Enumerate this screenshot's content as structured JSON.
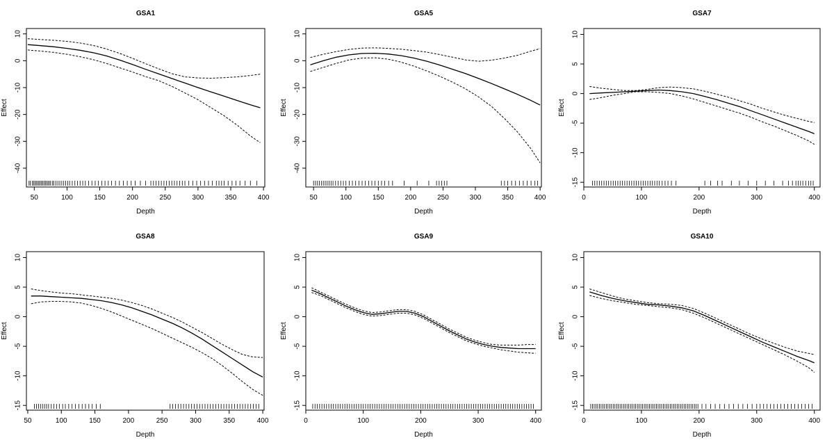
{
  "chart_data": [
    {
      "type": "line",
      "title": "GSA1",
      "xlabel": "Depth",
      "ylabel": "Effect",
      "xlim": [
        38,
        402
      ],
      "ylim": [
        -47,
        12
      ],
      "xticks": [
        50,
        100,
        150,
        200,
        250,
        300,
        350,
        400
      ],
      "yticks": [
        10,
        0,
        -10,
        -20,
        -30,
        -40
      ],
      "x": [
        40,
        60,
        80,
        100,
        120,
        140,
        160,
        180,
        200,
        220,
        240,
        260,
        280,
        300,
        320,
        340,
        360,
        380,
        395
      ],
      "series": [
        {
          "role": "fit",
          "dashed": false,
          "values": [
            6.0,
            5.6,
            5.2,
            4.6,
            3.9,
            3.0,
            1.8,
            0.3,
            -1.4,
            -3.2,
            -4.9,
            -6.6,
            -8.3,
            -10.0,
            -11.6,
            -13.2,
            -14.8,
            -16.4,
            -17.5
          ]
        },
        {
          "role": "upper",
          "dashed": true,
          "values": [
            8.2,
            7.9,
            7.6,
            7.2,
            6.6,
            5.7,
            4.4,
            2.8,
            0.9,
            -1.1,
            -3.0,
            -4.8,
            -6.0,
            -6.4,
            -6.5,
            -6.3,
            -6.0,
            -5.5,
            -5.0
          ]
        },
        {
          "role": "lower",
          "dashed": true,
          "values": [
            4.0,
            3.6,
            3.1,
            2.4,
            1.5,
            0.4,
            -1.0,
            -2.6,
            -4.2,
            -5.9,
            -7.4,
            -9.5,
            -12.0,
            -14.5,
            -17.5,
            -20.5,
            -24.0,
            -28.0,
            -30.5
          ]
        }
      ],
      "rug": [
        42,
        44,
        47,
        49,
        51,
        53,
        55,
        57,
        59,
        61,
        63,
        65,
        67,
        69,
        71,
        73,
        75,
        78,
        80,
        83,
        86,
        89,
        92,
        95,
        98,
        101,
        104,
        108,
        112,
        116,
        120,
        124,
        128,
        133,
        138,
        143,
        148,
        153,
        158,
        163,
        168,
        174,
        180,
        186,
        192,
        198,
        204,
        212,
        220,
        228,
        232,
        236,
        240,
        244,
        248,
        252,
        256,
        260,
        264,
        268,
        272,
        276,
        280,
        286,
        292,
        298,
        304,
        310,
        316,
        322,
        328,
        332,
        336,
        340,
        346,
        352,
        358,
        364,
        372,
        380,
        390
      ]
    },
    {
      "type": "line",
      "title": "GSA5",
      "xlabel": "Depth",
      "ylabel": "Effect",
      "xlim": [
        38,
        402
      ],
      "ylim": [
        -47,
        12
      ],
      "xticks": [
        50,
        100,
        150,
        200,
        250,
        300,
        350,
        400
      ],
      "yticks": [
        10,
        0,
        -10,
        -20,
        -30,
        -40
      ],
      "x": [
        45,
        65,
        85,
        105,
        125,
        145,
        165,
        185,
        205,
        225,
        245,
        265,
        285,
        305,
        325,
        345,
        365,
        385,
        400
      ],
      "series": [
        {
          "role": "fit",
          "dashed": false,
          "values": [
            -1.5,
            0.0,
            1.3,
            2.2,
            2.7,
            2.8,
            2.5,
            1.9,
            1.0,
            -0.2,
            -1.6,
            -3.2,
            -4.8,
            -6.6,
            -8.5,
            -10.5,
            -12.5,
            -14.7,
            -16.5
          ]
        },
        {
          "role": "upper",
          "dashed": true,
          "values": [
            1.2,
            2.4,
            3.4,
            4.2,
            4.7,
            4.8,
            4.6,
            4.3,
            3.8,
            3.2,
            2.3,
            1.3,
            0.3,
            -0.2,
            0.2,
            1.0,
            2.0,
            3.5,
            4.5
          ]
        },
        {
          "role": "lower",
          "dashed": true,
          "values": [
            -4.0,
            -2.5,
            -1.0,
            0.3,
            1.0,
            1.1,
            0.6,
            -0.5,
            -2.0,
            -3.8,
            -5.8,
            -8.0,
            -10.5,
            -13.5,
            -17.0,
            -21.5,
            -26.5,
            -32.5,
            -38.0
          ]
        }
      ],
      "rug": [
        50,
        53,
        56,
        59,
        62,
        65,
        68,
        71,
        74,
        77,
        80,
        84,
        88,
        92,
        96,
        100,
        105,
        110,
        115,
        120,
        125,
        130,
        135,
        140,
        145,
        150,
        155,
        160,
        166,
        172,
        190,
        210,
        228,
        240,
        244,
        248,
        252,
        256,
        340,
        345,
        350,
        356,
        362,
        368,
        374,
        380,
        386,
        392,
        396
      ]
    },
    {
      "type": "line",
      "title": "GSA7",
      "xlabel": "Depth",
      "ylabel": "Effect",
      "xlim": [
        0,
        410
      ],
      "ylim": [
        -15.8,
        11
      ],
      "xticks": [
        0,
        100,
        200,
        300,
        400
      ],
      "yticks": [
        10,
        5,
        0,
        -5,
        -10,
        -15
      ],
      "x": [
        10,
        30,
        50,
        70,
        90,
        110,
        130,
        150,
        170,
        190,
        210,
        230,
        250,
        270,
        290,
        310,
        330,
        350,
        370,
        390,
        400
      ],
      "series": [
        {
          "role": "fit",
          "dashed": false,
          "values": [
            0.0,
            0.1,
            0.2,
            0.3,
            0.4,
            0.5,
            0.6,
            0.5,
            0.3,
            0.0,
            -0.5,
            -1.0,
            -1.6,
            -2.2,
            -2.9,
            -3.6,
            -4.3,
            -5.0,
            -5.7,
            -6.4,
            -6.8
          ]
        },
        {
          "role": "upper",
          "dashed": true,
          "values": [
            1.2,
            0.9,
            0.7,
            0.5,
            0.5,
            0.7,
            1.0,
            1.1,
            1.0,
            0.8,
            0.4,
            -0.1,
            -0.6,
            -1.2,
            -1.8,
            -2.5,
            -3.1,
            -3.7,
            -4.2,
            -4.7,
            -4.9
          ]
        },
        {
          "role": "lower",
          "dashed": true,
          "values": [
            -1.0,
            -0.7,
            -0.3,
            0.0,
            0.3,
            0.3,
            0.2,
            0.0,
            -0.4,
            -0.9,
            -1.5,
            -2.1,
            -2.7,
            -3.3,
            -4.0,
            -4.8,
            -5.5,
            -6.3,
            -7.1,
            -8.0,
            -8.6
          ]
        }
      ],
      "rug": [
        15,
        19,
        23,
        27,
        31,
        35,
        39,
        43,
        47,
        51,
        55,
        59,
        63,
        67,
        71,
        75,
        79,
        83,
        87,
        91,
        95,
        99,
        103,
        107,
        111,
        115,
        119,
        123,
        127,
        131,
        136,
        141,
        146,
        152,
        160,
        210,
        220,
        232,
        240,
        256,
        270,
        285,
        300,
        315,
        330,
        345,
        355,
        362,
        368,
        372,
        376,
        380,
        385,
        390,
        394,
        398
      ]
    },
    {
      "type": "line",
      "title": "GSA8",
      "xlabel": "Depth",
      "ylabel": "Effect",
      "xlim": [
        48,
        402
      ],
      "ylim": [
        -15.8,
        11
      ],
      "xticks": [
        50,
        100,
        150,
        200,
        250,
        300,
        350,
        400
      ],
      "yticks": [
        10,
        5,
        0,
        -5,
        -10,
        -15
      ],
      "x": [
        55,
        70,
        85,
        100,
        115,
        130,
        145,
        160,
        175,
        190,
        205,
        220,
        235,
        250,
        265,
        280,
        295,
        310,
        325,
        340,
        355,
        370,
        385,
        400
      ],
      "series": [
        {
          "role": "fit",
          "dashed": false,
          "values": [
            3.5,
            3.5,
            3.4,
            3.3,
            3.2,
            3.1,
            2.9,
            2.7,
            2.4,
            2.0,
            1.5,
            0.9,
            0.3,
            -0.4,
            -1.1,
            -1.9,
            -2.8,
            -3.8,
            -4.9,
            -6.0,
            -7.1,
            -8.2,
            -9.3,
            -10.2
          ]
        },
        {
          "role": "upper",
          "dashed": true,
          "values": [
            4.7,
            4.4,
            4.2,
            4.0,
            3.9,
            3.7,
            3.5,
            3.3,
            3.1,
            2.8,
            2.4,
            1.9,
            1.3,
            0.6,
            -0.1,
            -0.9,
            -1.8,
            -2.7,
            -3.7,
            -4.7,
            -5.6,
            -6.4,
            -6.8,
            -6.9
          ]
        },
        {
          "role": "lower",
          "dashed": true,
          "values": [
            2.2,
            2.5,
            2.6,
            2.6,
            2.5,
            2.3,
            1.9,
            1.4,
            0.8,
            0.1,
            -0.6,
            -1.3,
            -2.0,
            -2.8,
            -3.6,
            -4.4,
            -5.2,
            -6.1,
            -7.1,
            -8.3,
            -9.6,
            -11.0,
            -12.3,
            -13.3
          ]
        }
      ],
      "rug": [
        60,
        63,
        66,
        69,
        72,
        75,
        78,
        81,
        85,
        89,
        93,
        97,
        102,
        106,
        111,
        116,
        121,
        126,
        131,
        136,
        141,
        146,
        152,
        158,
        262,
        266,
        270,
        274,
        278,
        282,
        286,
        290,
        294,
        298,
        302,
        306,
        310,
        314,
        318,
        322,
        326,
        330,
        334,
        338,
        342,
        346,
        350,
        354,
        358,
        362,
        366,
        370,
        374,
        378,
        382,
        386,
        390,
        394
      ]
    },
    {
      "type": "line",
      "title": "GSA9",
      "xlabel": "Depth",
      "ylabel": "Effect",
      "xlim": [
        0,
        410
      ],
      "ylim": [
        -15.8,
        11
      ],
      "xticks": [
        0,
        100,
        200,
        300,
        400
      ],
      "yticks": [
        10,
        5,
        0,
        -5,
        -10,
        -15
      ],
      "x": [
        10,
        25,
        40,
        55,
        70,
        85,
        100,
        115,
        130,
        145,
        160,
        175,
        190,
        205,
        220,
        235,
        250,
        265,
        280,
        295,
        310,
        325,
        340,
        355,
        370,
        385,
        400
      ],
      "series": [
        {
          "role": "fit",
          "dashed": false,
          "values": [
            4.5,
            3.9,
            3.2,
            2.5,
            1.8,
            1.2,
            0.7,
            0.4,
            0.5,
            0.7,
            0.9,
            0.9,
            0.6,
            0.0,
            -0.8,
            -1.6,
            -2.4,
            -3.1,
            -3.8,
            -4.3,
            -4.7,
            -5.0,
            -5.2,
            -5.3,
            -5.4,
            -5.4,
            -5.4
          ]
        },
        {
          "role": "upper",
          "dashed": true,
          "values": [
            4.9,
            4.2,
            3.5,
            2.8,
            2.1,
            1.5,
            1.0,
            0.7,
            0.8,
            1.0,
            1.2,
            1.2,
            0.9,
            0.3,
            -0.5,
            -1.3,
            -2.1,
            -2.8,
            -3.5,
            -4.0,
            -4.4,
            -4.7,
            -4.8,
            -4.8,
            -4.8,
            -4.7,
            -4.7
          ]
        },
        {
          "role": "lower",
          "dashed": true,
          "values": [
            4.1,
            3.6,
            2.9,
            2.2,
            1.5,
            0.9,
            0.4,
            0.1,
            0.2,
            0.4,
            0.6,
            0.6,
            0.3,
            -0.3,
            -1.1,
            -1.9,
            -2.7,
            -3.4,
            -4.1,
            -4.6,
            -5.0,
            -5.3,
            -5.6,
            -5.8,
            -6.0,
            -6.1,
            -6.2
          ]
        }
      ],
      "rug": [
        12,
        16,
        20,
        24,
        28,
        32,
        36,
        40,
        44,
        48,
        52,
        56,
        60,
        64,
        68,
        72,
        76,
        80,
        84,
        88,
        92,
        96,
        100,
        104,
        108,
        112,
        116,
        120,
        124,
        128,
        132,
        136,
        140,
        144,
        148,
        152,
        156,
        160,
        164,
        168,
        172,
        176,
        180,
        184,
        188,
        192,
        196,
        200,
        204,
        208,
        212,
        216,
        220,
        224,
        228,
        232,
        236,
        240,
        244,
        248,
        252,
        256,
        260,
        264,
        268,
        272,
        276,
        280,
        284,
        288,
        292,
        296,
        300,
        304,
        308,
        312,
        316,
        320,
        324,
        328,
        332,
        336,
        340,
        344,
        348,
        352,
        356,
        360,
        364,
        368,
        372,
        376,
        380,
        384,
        388,
        392,
        396
      ]
    },
    {
      "type": "line",
      "title": "GSA10",
      "xlabel": "Depth",
      "ylabel": "Effect",
      "xlim": [
        0,
        410
      ],
      "ylim": [
        -15.8,
        11
      ],
      "xticks": [
        0,
        100,
        200,
        300,
        400
      ],
      "yticks": [
        10,
        5,
        0,
        -5,
        -10,
        -15
      ],
      "x": [
        10,
        30,
        50,
        70,
        90,
        110,
        130,
        150,
        170,
        190,
        210,
        230,
        250,
        270,
        290,
        310,
        330,
        350,
        370,
        390,
        400
      ],
      "series": [
        {
          "role": "fit",
          "dashed": false,
          "values": [
            4.2,
            3.6,
            3.1,
            2.7,
            2.4,
            2.1,
            2.0,
            1.8,
            1.5,
            1.0,
            0.2,
            -0.7,
            -1.6,
            -2.5,
            -3.4,
            -4.3,
            -5.1,
            -5.9,
            -6.7,
            -7.4,
            -7.8
          ]
        },
        {
          "role": "upper",
          "dashed": true,
          "values": [
            4.7,
            4.1,
            3.5,
            3.0,
            2.7,
            2.4,
            2.2,
            2.1,
            1.9,
            1.4,
            0.6,
            -0.3,
            -1.2,
            -2.1,
            -3.0,
            -3.8,
            -4.5,
            -5.2,
            -5.8,
            -6.2,
            -6.4
          ]
        },
        {
          "role": "lower",
          "dashed": true,
          "values": [
            3.6,
            3.1,
            2.7,
            2.4,
            2.1,
            1.9,
            1.7,
            1.5,
            1.2,
            0.6,
            -0.2,
            -1.1,
            -2.0,
            -2.9,
            -3.8,
            -4.7,
            -5.6,
            -6.5,
            -7.5,
            -8.6,
            -9.4
          ]
        }
      ],
      "rug": [
        12,
        15,
        18,
        21,
        24,
        27,
        30,
        33,
        36,
        39,
        42,
        45,
        48,
        51,
        54,
        57,
        60,
        63,
        66,
        69,
        72,
        75,
        78,
        81,
        84,
        87,
        90,
        93,
        96,
        99,
        102,
        105,
        108,
        111,
        114,
        117,
        120,
        123,
        126,
        129,
        132,
        135,
        138,
        141,
        144,
        147,
        150,
        153,
        156,
        159,
        162,
        165,
        168,
        171,
        174,
        177,
        180,
        183,
        186,
        189,
        192,
        195,
        198,
        205,
        212,
        220,
        228,
        236,
        244,
        252,
        260,
        268,
        276,
        284,
        292,
        300,
        306,
        312,
        318,
        324,
        330,
        336,
        342,
        348,
        354,
        360,
        366,
        372,
        378,
        384,
        390,
        396
      ]
    }
  ]
}
